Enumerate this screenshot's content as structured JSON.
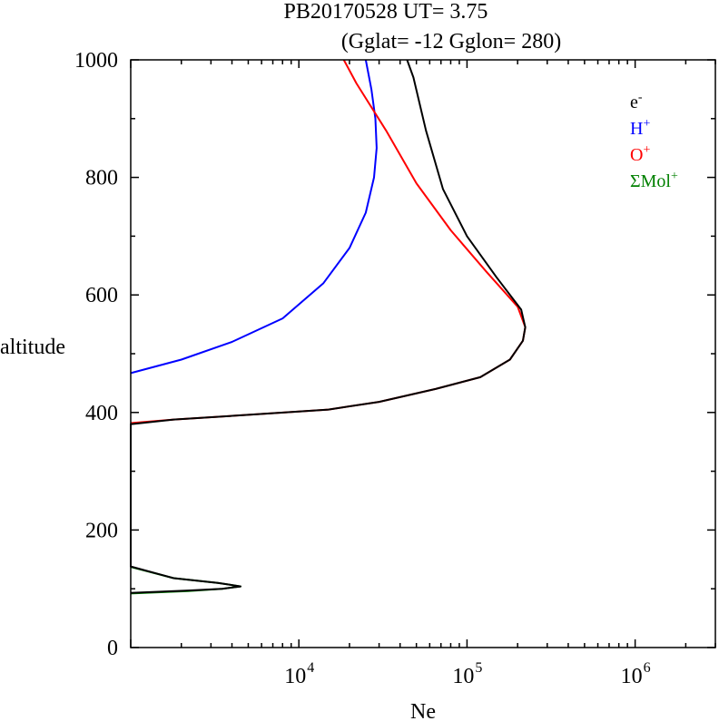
{
  "chart_data": {
    "type": "line",
    "title": "PB20170528   UT=  3.75",
    "subtitle": "(Gglat= -12   Gglon=  280)",
    "xlabel": "Ne",
    "ylabel": "altitude",
    "xscale": "log",
    "xlim": [
      1000,
      3000000
    ],
    "ylim": [
      0,
      1000
    ],
    "xticks": [
      {
        "value": 10000,
        "base": "10",
        "exp": "4"
      },
      {
        "value": 100000,
        "base": "10",
        "exp": "5"
      },
      {
        "value": 1000000,
        "base": "10",
        "exp": "6"
      }
    ],
    "yticks": [
      0,
      200,
      400,
      600,
      800,
      1000
    ],
    "grid": false,
    "legend_position": "top-right",
    "series": [
      {
        "name": "e",
        "sup": "-",
        "color": "#000000",
        "points": [
          [
            1000,
            93
          ],
          [
            2200,
            97
          ],
          [
            3500,
            100
          ],
          [
            4500,
            104
          ],
          [
            3300,
            110
          ],
          [
            1800,
            118
          ],
          [
            1000,
            138
          ],
          [
            1000,
            380
          ],
          [
            1800,
            388
          ],
          [
            5000,
            396
          ],
          [
            15000,
            405
          ],
          [
            30000,
            418
          ],
          [
            65000,
            440
          ],
          [
            120000,
            460
          ],
          [
            180000,
            490
          ],
          [
            215000,
            522
          ],
          [
            222000,
            545
          ],
          [
            210000,
            575
          ],
          [
            150000,
            630
          ],
          [
            100000,
            700
          ],
          [
            72000,
            780
          ],
          [
            57000,
            880
          ],
          [
            48000,
            970
          ],
          [
            44000,
            1000
          ]
        ]
      },
      {
        "name": "H",
        "sup": "+",
        "color": "#0000ff",
        "points": [
          [
            1000,
            467
          ],
          [
            2000,
            490
          ],
          [
            4000,
            520
          ],
          [
            8000,
            560
          ],
          [
            14000,
            620
          ],
          [
            20000,
            680
          ],
          [
            25000,
            740
          ],
          [
            28000,
            800
          ],
          [
            29000,
            850
          ],
          [
            28500,
            900
          ],
          [
            27000,
            950
          ],
          [
            25000,
            1000
          ]
        ]
      },
      {
        "name": "O",
        "sup": "+",
        "color": "#ff0000",
        "points": [
          [
            1000,
            382
          ],
          [
            1800,
            388
          ],
          [
            5000,
            396
          ],
          [
            15000,
            405
          ],
          [
            30000,
            418
          ],
          [
            65000,
            440
          ],
          [
            120000,
            460
          ],
          [
            180000,
            490
          ],
          [
            215000,
            522
          ],
          [
            222000,
            545
          ],
          [
            200000,
            580
          ],
          [
            130000,
            640
          ],
          [
            80000,
            710
          ],
          [
            50000,
            790
          ],
          [
            33000,
            880
          ],
          [
            22000,
            960
          ],
          [
            18500,
            1000
          ]
        ]
      },
      {
        "name": "ΣMol",
        "sup": "+",
        "color": "#008000",
        "points": [
          [
            1000,
            92
          ],
          [
            2200,
            96
          ],
          [
            3500,
            100
          ],
          [
            4500,
            104
          ],
          [
            3300,
            110
          ],
          [
            1800,
            118
          ],
          [
            1000,
            137
          ]
        ]
      }
    ]
  }
}
